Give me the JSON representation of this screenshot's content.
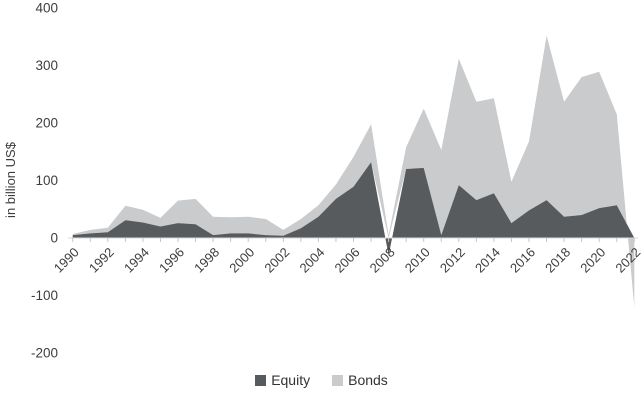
{
  "chart_data": {
    "type": "area",
    "stacked": true,
    "title": "",
    "xlabel": "",
    "ylabel": "in billion US$",
    "ylim": [
      -200,
      400
    ],
    "yticks": [
      400,
      300,
      200,
      100,
      0,
      -100,
      -200
    ],
    "grid": false,
    "legend_position": "bottom",
    "x": [
      1990,
      1991,
      1992,
      1993,
      1994,
      1995,
      1996,
      1997,
      1998,
      1999,
      2000,
      2001,
      2002,
      2003,
      2004,
      2005,
      2006,
      2007,
      2008,
      2009,
      2010,
      2011,
      2012,
      2013,
      2014,
      2015,
      2016,
      2017,
      2018,
      2019,
      2020,
      2021,
      2022
    ],
    "xtick_labels": [
      "1990",
      "1992",
      "1994",
      "1996",
      "1998",
      "2000",
      "2002",
      "2004",
      "2006",
      "2008",
      "2010",
      "2012",
      "2014",
      "2016",
      "2018",
      "2020",
      "2022"
    ],
    "series": [
      {
        "name": "Equity",
        "color": "#575B5E",
        "values": [
          5,
          8,
          10,
          31,
          27,
          20,
          26,
          24,
          5,
          8,
          8,
          5,
          4,
          17,
          37,
          68,
          89,
          132,
          -30,
          120,
          122,
          5,
          92,
          66,
          78,
          26,
          48,
          66,
          37,
          40,
          52,
          57,
          0
        ]
      },
      {
        "name": "Bonds",
        "color": "#C9CBCD",
        "values": [
          2,
          6,
          8,
          25,
          22,
          15,
          39,
          44,
          32,
          28,
          29,
          28,
          10,
          16,
          20,
          25,
          52,
          66,
          5,
          38,
          103,
          148,
          220,
          171,
          165,
          72,
          120,
          286,
          200,
          240,
          237,
          158,
          -120
        ]
      }
    ],
    "axis_color": "#d9d9d9",
    "tick_color": "#c6c6c6",
    "text_color": "#3d3d3d"
  },
  "legend": {
    "equity_label": "Equity",
    "bonds_label": "Bonds"
  }
}
